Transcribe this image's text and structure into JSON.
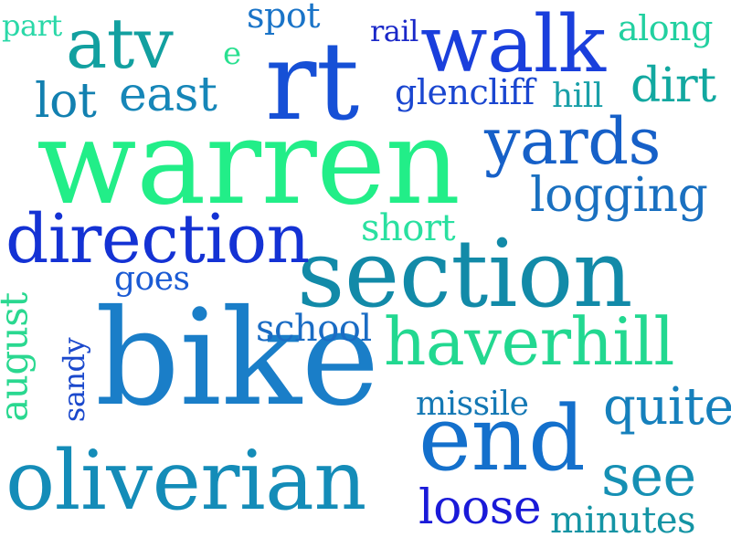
{
  "words": [
    {
      "text": "warren",
      "color": "#22ee88"
    },
    {
      "text": "bike",
      "color": "#1a7ec8"
    },
    {
      "text": "section",
      "color": "#128aa8"
    },
    {
      "text": "rt",
      "color": "#1650d6"
    },
    {
      "text": "walk",
      "color": "#1a3fdc"
    },
    {
      "text": "oliverian",
      "color": "#148cb8"
    },
    {
      "text": "end",
      "color": "#1470cc"
    },
    {
      "text": "haverhill",
      "color": "#22d890"
    },
    {
      "text": "direction",
      "color": "#1432d4"
    },
    {
      "text": "yards",
      "color": "#1660c8"
    },
    {
      "text": "atv",
      "color": "#12a0a0"
    },
    {
      "text": "logging",
      "color": "#1a70c0"
    },
    {
      "text": "see",
      "color": "#1690b4"
    },
    {
      "text": "quite",
      "color": "#1680bc"
    },
    {
      "text": "east",
      "color": "#1686b8"
    },
    {
      "text": "lot",
      "color": "#1280b0"
    },
    {
      "text": "dirt",
      "color": "#12a8a0"
    },
    {
      "text": "loose",
      "color": "#1a1ad8"
    },
    {
      "text": "minutes",
      "color": "#1494a4"
    },
    {
      "text": "along",
      "color": "#22d0a0"
    },
    {
      "text": "glencliff",
      "color": "#1a46d0"
    },
    {
      "text": "hill",
      "color": "#1aa0a8"
    },
    {
      "text": "short",
      "color": "#2ae0a0"
    },
    {
      "text": "school",
      "color": "#1a6cc4"
    },
    {
      "text": "missile",
      "color": "#1478b4"
    },
    {
      "text": "goes",
      "color": "#1a5ad4"
    },
    {
      "text": "spot",
      "color": "#1a74c8"
    },
    {
      "text": "rail",
      "color": "#1a28c8"
    },
    {
      "text": "part",
      "color": "#2ad8a8"
    },
    {
      "text": "e",
      "color": "#2ae090"
    },
    {
      "text": "august",
      "color": "#2ad890"
    },
    {
      "text": "sandy",
      "color": "#1a48cc"
    }
  ]
}
